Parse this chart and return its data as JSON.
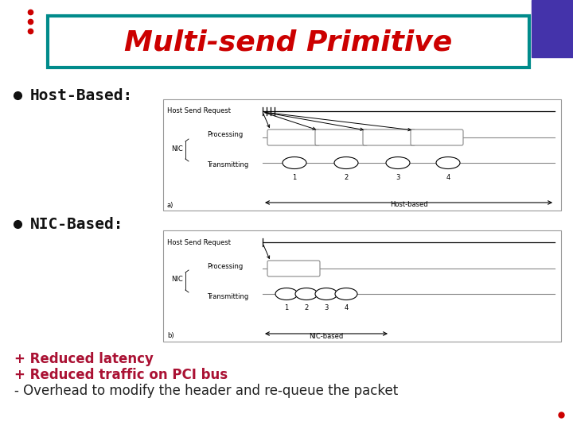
{
  "title": "Multi-send Primitive",
  "title_color": "#cc0000",
  "title_bg": "#ffffff",
  "title_border": "#008b8b",
  "bullet_color": "#111111",
  "bullet1": "Host-Based:",
  "bullet2": "NIC-Based:",
  "plus1": "+ Reduced latency",
  "plus2": "+ Reduced traffic on PCI bus",
  "minus1": "- Overhead to modify the header and re-queue the packet",
  "plus_color": "#aa1133",
  "minus_color": "#222222",
  "bg_color": "#ffffff",
  "dot_color": "#cc0000",
  "diagram_border": "#999999",
  "diagram_bg": "#ffffff",
  "top_dots_color": "#cc0000",
  "purple_rect_color": "#4433aa",
  "diag_line_color": "#888888",
  "diag_text_color": "#333333"
}
